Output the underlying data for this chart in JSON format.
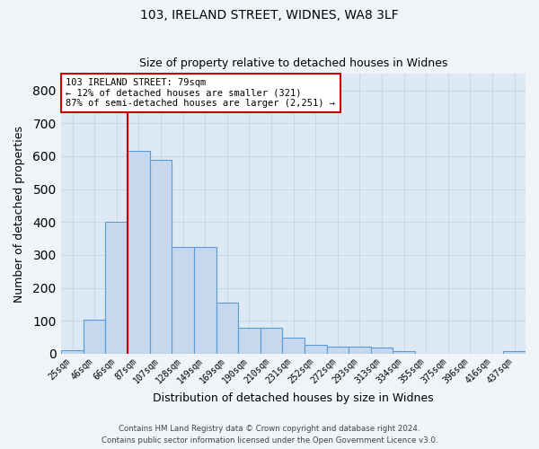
{
  "title1": "103, IRELAND STREET, WIDNES, WA8 3LF",
  "title2": "Size of property relative to detached houses in Widnes",
  "xlabel": "Distribution of detached houses by size in Widnes",
  "ylabel": "Number of detached properties",
  "categories": [
    "25sqm",
    "46sqm",
    "66sqm",
    "87sqm",
    "107sqm",
    "128sqm",
    "149sqm",
    "169sqm",
    "190sqm",
    "210sqm",
    "231sqm",
    "252sqm",
    "272sqm",
    "293sqm",
    "313sqm",
    "334sqm",
    "355sqm",
    "375sqm",
    "396sqm",
    "416sqm",
    "437sqm"
  ],
  "values": [
    10,
    103,
    400,
    615,
    590,
    325,
    325,
    155,
    80,
    78,
    50,
    27,
    22,
    22,
    18,
    8,
    0,
    0,
    0,
    0,
    8
  ],
  "bar_color": "#c5d8ee",
  "bar_edge_color": "#5b9bd5",
  "vline_color": "#cc0000",
  "annotation_box_color": "#ffffff",
  "annotation_box_edge_color": "#cc0000",
  "property_line_label": "103 IRELAND STREET: 79sqm",
  "annotation_line1": "← 12% of detached houses are smaller (321)",
  "annotation_line2": "87% of semi-detached houses are larger (2,251) →",
  "ylim": [
    0,
    850
  ],
  "yticks": [
    0,
    100,
    200,
    300,
    400,
    500,
    600,
    700,
    800
  ],
  "grid_color": "#c8d8e8",
  "bg_color": "#ddeaf5",
  "fig_bg_color": "#f0f4f8",
  "footnote1": "Contains HM Land Registry data © Crown copyright and database right 2024.",
  "footnote2": "Contains public sector information licensed under the Open Government Licence v3.0."
}
